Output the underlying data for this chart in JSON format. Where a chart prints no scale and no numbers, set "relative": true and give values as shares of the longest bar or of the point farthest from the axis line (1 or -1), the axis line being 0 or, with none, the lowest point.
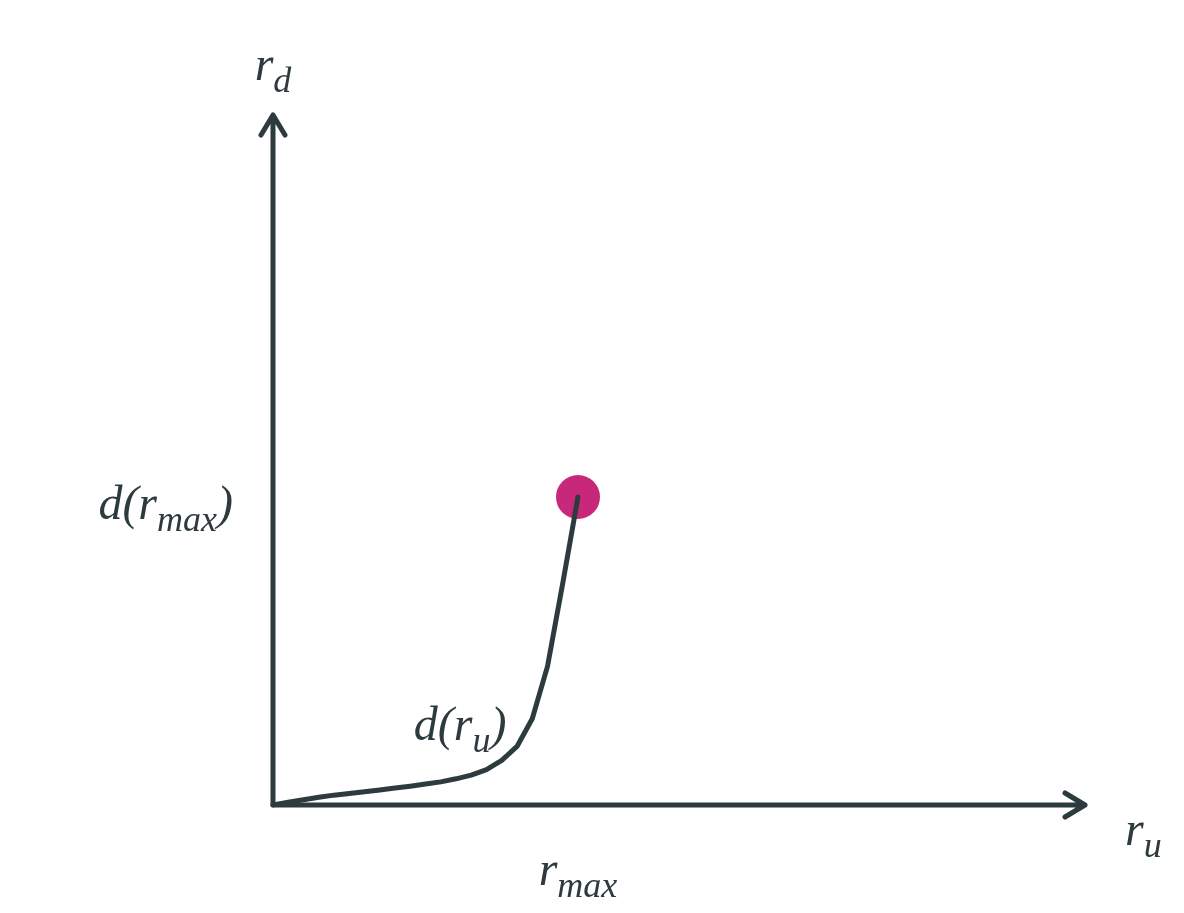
{
  "chart_data": {
    "type": "line",
    "relative": true,
    "marker": "none",
    "line_style": "solid",
    "categories": [
      null,
      null,
      null,
      null,
      null,
      null,
      null,
      null,
      null,
      null,
      null,
      null,
      null,
      null,
      null,
      null,
      null,
      null,
      null,
      null,
      null
    ],
    "annotations": [
      "r$_{max}$",
      "d(r$_{max}$)",
      "r$_{u}$",
      "r$_{d}$"
    ],
    "series": [
      {
        "name": "d(r$_{u}$)",
        "color": "#2d3a3e",
        "values": [
          0,
          0.009,
          0.017,
          0.025,
          0.032,
          0.037,
          0.043,
          0.049,
          0.055,
          0.061,
          0.068,
          0.075,
          0.085,
          0.097,
          0.115,
          0.145,
          0.19,
          0.28,
          0.45,
          0.72,
          1
        ]
      }
    ]
  }
}
